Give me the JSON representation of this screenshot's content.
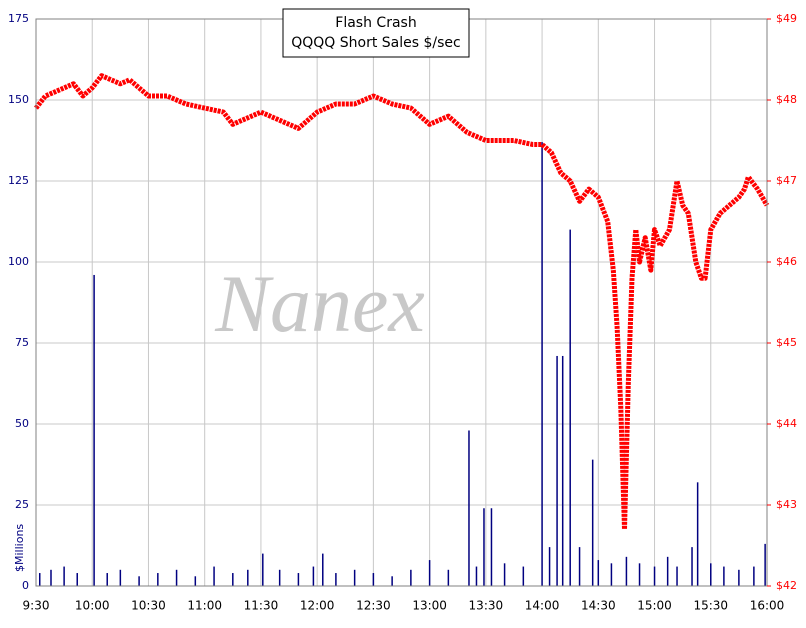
{
  "chart_data": {
    "type": "bar-line",
    "title": "Flash Crash",
    "subtitle": "QQQQ Short Sales $/sec",
    "watermark": "Nanex",
    "ylabel": "$Millions",
    "xlim": [
      "9:30",
      "16:00"
    ],
    "xticks": [
      "9:30",
      "10:00",
      "10:30",
      "11:00",
      "11:30",
      "12:00",
      "12:30",
      "13:00",
      "13:30",
      "14:00",
      "14:30",
      "15:00",
      "15:30",
      "16:00"
    ],
    "ylim": [
      0,
      175
    ],
    "yticks": [
      0,
      25,
      50,
      75,
      100,
      125,
      150,
      175
    ],
    "y2lim": [
      42,
      49
    ],
    "y2ticks": [
      {
        "value": 42,
        "label": "$42"
      },
      {
        "value": 43,
        "label": "$43"
      },
      {
        "value": 44,
        "label": "$44"
      },
      {
        "value": 45,
        "label": "$45"
      },
      {
        "value": 46,
        "label": "$46"
      },
      {
        "value": 47,
        "label": "$47"
      },
      {
        "value": 48,
        "label": "$48"
      },
      {
        "value": 49,
        "label": "$49"
      }
    ],
    "grid": true,
    "series": [
      {
        "type": "bar",
        "color": "#000080",
        "x": [
          "9:32",
          "9:38",
          "9:45",
          "9:52",
          "10:01",
          "10:08",
          "10:15",
          "10:25",
          "10:35",
          "10:45",
          "10:55",
          "11:05",
          "11:15",
          "11:23",
          "11:31",
          "11:40",
          "11:50",
          "11:58",
          "12:03",
          "12:10",
          "12:20",
          "12:30",
          "12:40",
          "12:50",
          "13:00",
          "13:10",
          "13:21",
          "13:25",
          "13:29",
          "13:33",
          "13:40",
          "13:50",
          "14:00",
          "14:04",
          "14:08",
          "14:11",
          "14:15",
          "14:20",
          "14:27",
          "14:30",
          "14:37",
          "14:45",
          "14:52",
          "15:00",
          "15:07",
          "15:12",
          "15:20",
          "15:23",
          "15:30",
          "15:37",
          "15:45",
          "15:53",
          "15:59"
        ],
        "values": [
          4,
          5,
          6,
          4,
          96,
          4,
          5,
          3,
          4,
          5,
          3,
          6,
          4,
          5,
          10,
          5,
          4,
          6,
          10,
          4,
          5,
          4,
          3,
          5,
          8,
          5,
          48,
          6,
          24,
          24,
          7,
          6,
          137,
          12,
          71,
          71,
          110,
          12,
          39,
          8,
          7,
          9,
          7,
          6,
          9,
          6,
          12,
          32,
          7,
          6,
          5,
          6,
          13
        ]
      },
      {
        "type": "line",
        "axis": "y2",
        "color": "#ff0000",
        "x": [
          "9:30",
          "9:35",
          "9:45",
          "9:50",
          "9:55",
          "10:00",
          "10:05",
          "10:15",
          "10:20",
          "10:30",
          "10:40",
          "10:50",
          "11:00",
          "11:10",
          "11:15",
          "11:30",
          "11:40",
          "11:50",
          "12:00",
          "12:10",
          "12:20",
          "12:30",
          "12:40",
          "12:50",
          "13:00",
          "13:10",
          "13:20",
          "13:30",
          "13:45",
          "13:55",
          "14:00",
          "14:05",
          "14:10",
          "14:15",
          "14:20",
          "14:25",
          "14:30",
          "14:35",
          "14:38",
          "14:40",
          "14:42",
          "14:44",
          "14:46",
          "14:48",
          "14:50",
          "14:52",
          "14:55",
          "14:58",
          "15:00",
          "15:03",
          "15:08",
          "15:12",
          "15:15",
          "15:18",
          "15:22",
          "15:25",
          "15:27",
          "15:30",
          "15:35",
          "15:40",
          "15:45",
          "15:48",
          "15:50",
          "15:55",
          "16:00"
        ],
        "values": [
          47.9,
          48.05,
          48.15,
          48.2,
          48.05,
          48.15,
          48.3,
          48.2,
          48.25,
          48.05,
          48.05,
          47.95,
          47.9,
          47.85,
          47.7,
          47.85,
          47.75,
          47.65,
          47.85,
          47.95,
          47.95,
          48.05,
          47.95,
          47.9,
          47.7,
          47.8,
          47.6,
          47.5,
          47.5,
          47.45,
          47.45,
          47.35,
          47.1,
          47.0,
          46.75,
          46.9,
          46.8,
          46.5,
          45.9,
          45.2,
          44.2,
          42.7,
          44.5,
          45.8,
          46.4,
          46.0,
          46.3,
          45.9,
          46.4,
          46.2,
          46.4,
          47.0,
          46.7,
          46.6,
          46.0,
          45.8,
          45.8,
          46.4,
          46.6,
          46.7,
          46.8,
          46.9,
          47.05,
          46.9,
          46.7
        ]
      }
    ]
  }
}
